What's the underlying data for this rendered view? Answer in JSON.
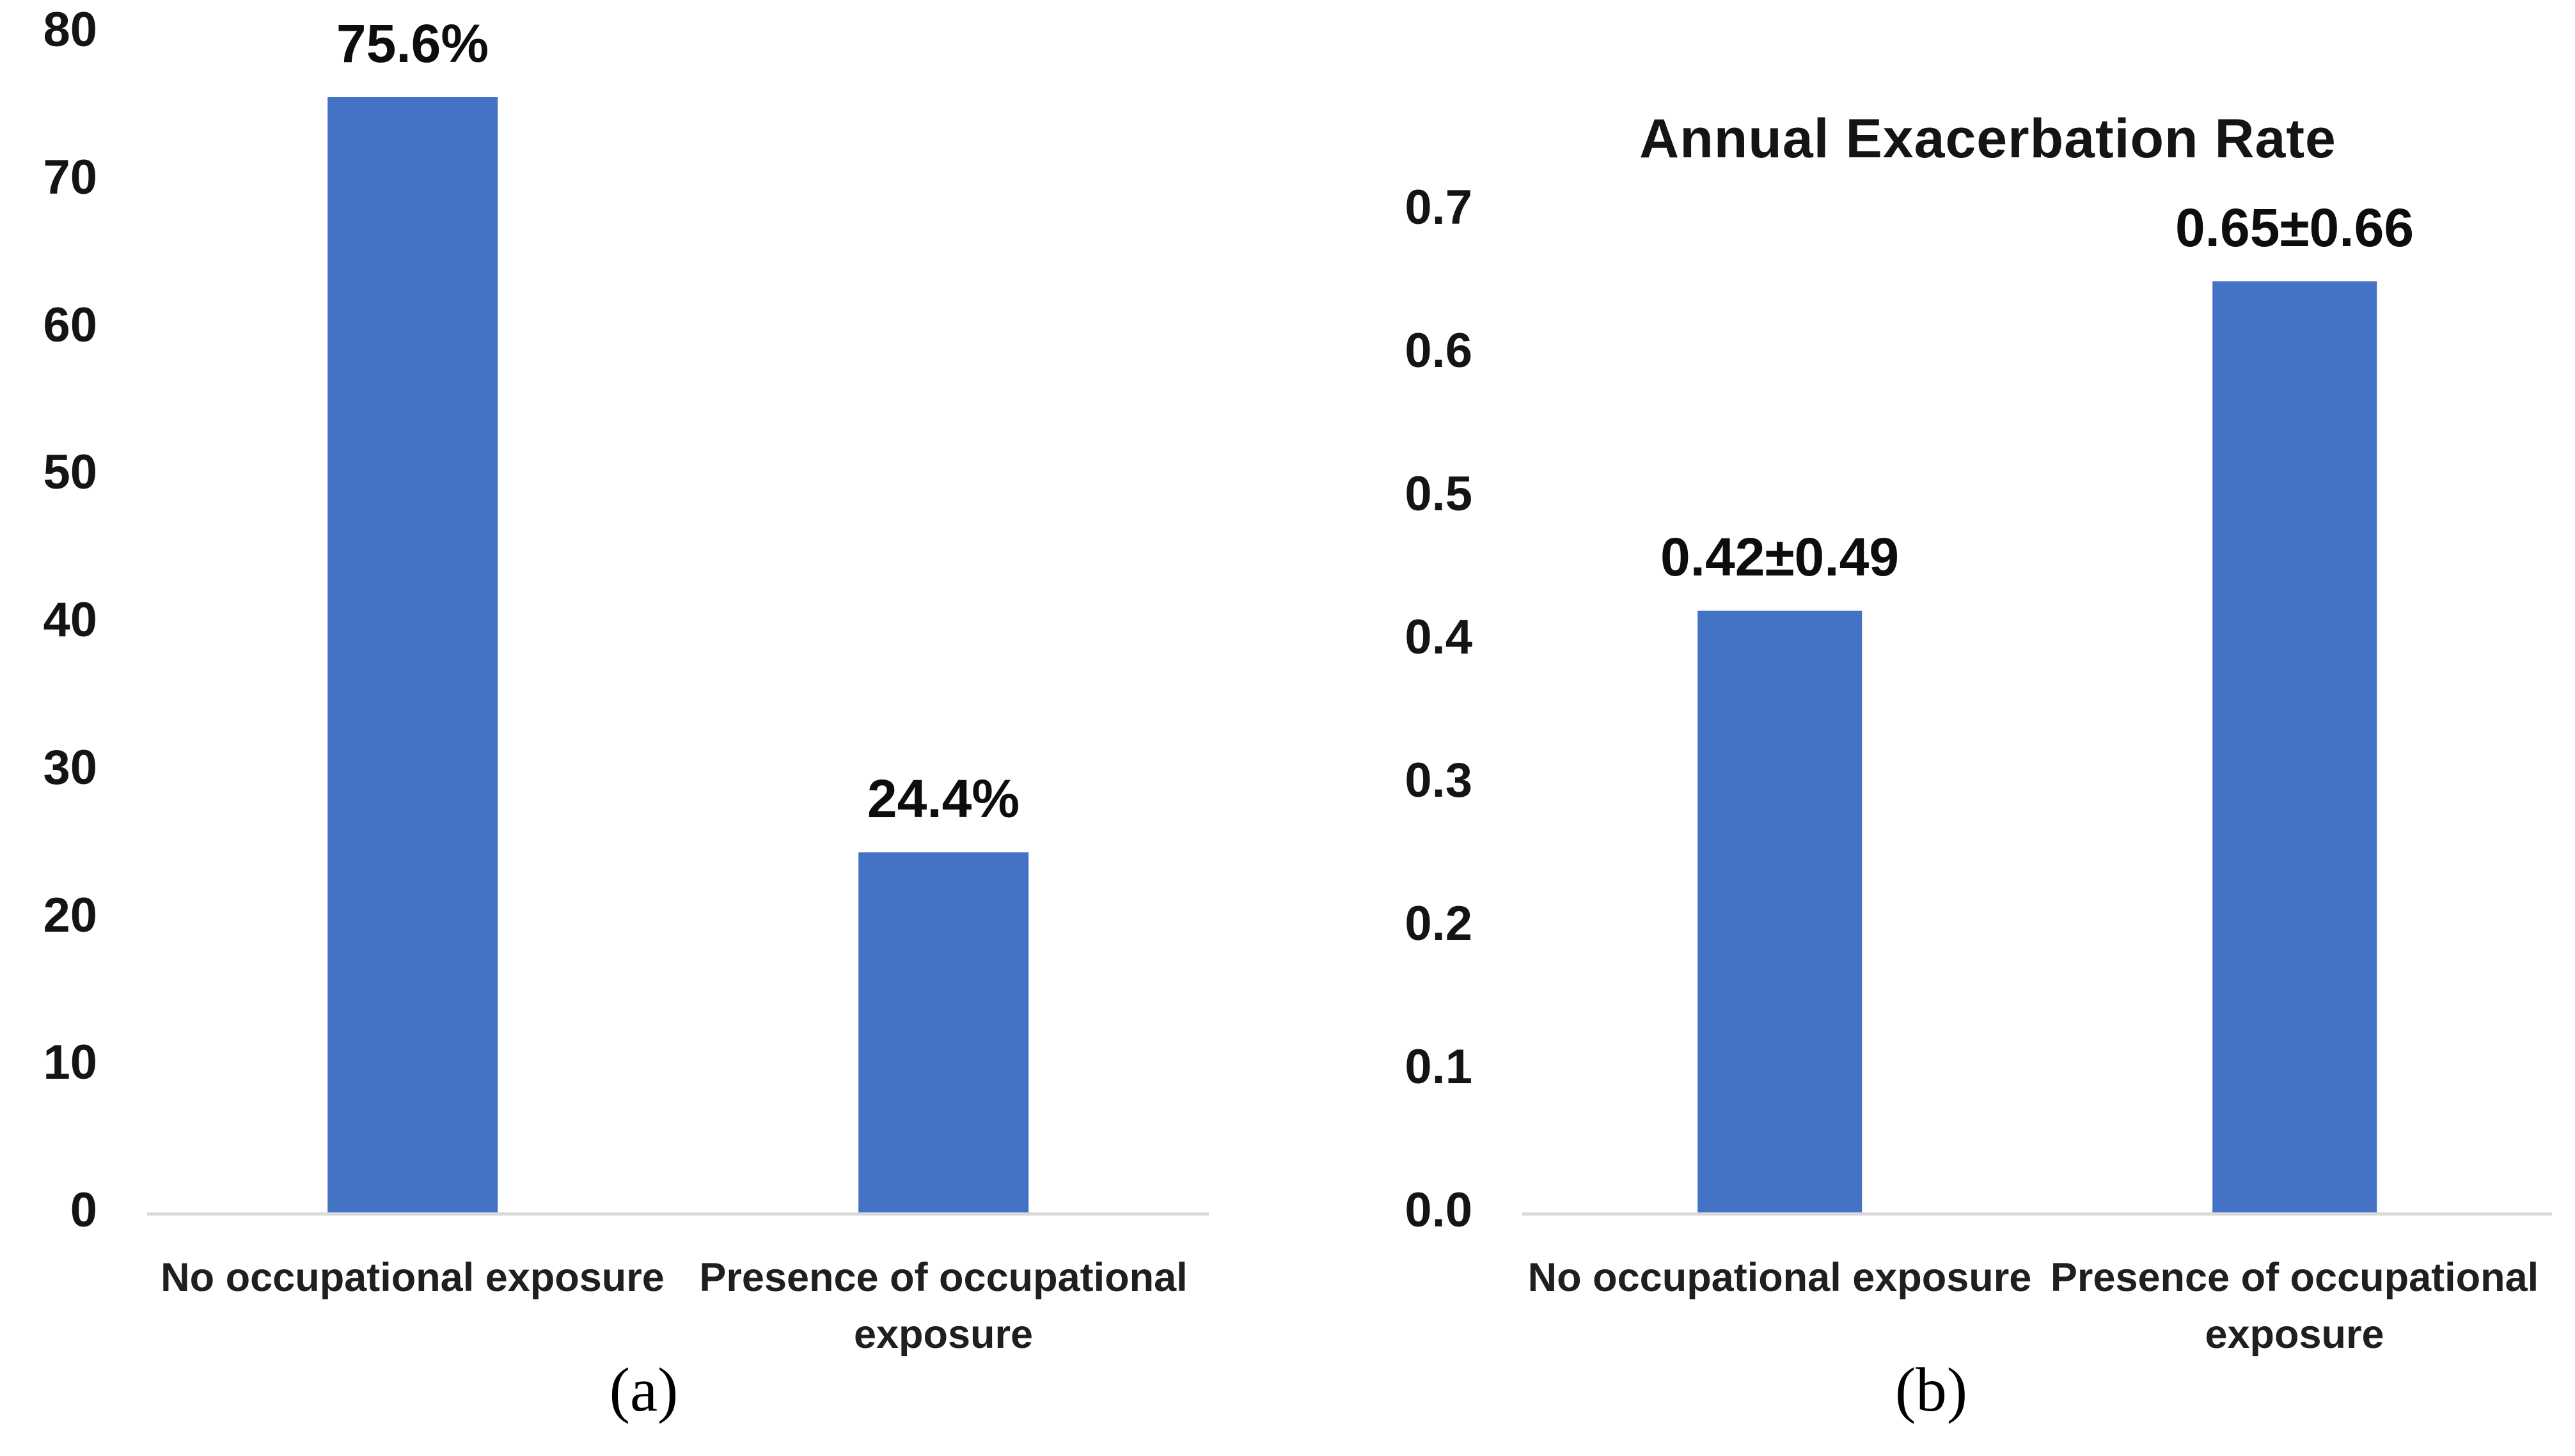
{
  "figure": {
    "background": "#ffffff"
  },
  "colors": {
    "bar": "#4472C4",
    "axis_line": "#d9d9d9",
    "text": "#1a1a1a"
  },
  "chart_data": [
    {
      "id": "a",
      "type": "bar",
      "title": "",
      "caption": "(a)",
      "categories": [
        "No occupational exposure",
        "Presence of occupational exposure"
      ],
      "values": [
        75.6,
        24.4
      ],
      "value_labels": [
        "75.6%",
        "24.4%"
      ],
      "ylim": [
        0,
        80
      ],
      "yticks": [
        0,
        10,
        20,
        30,
        40,
        50,
        60,
        70,
        80
      ],
      "ytick_labels": [
        "0",
        "10",
        "20",
        "30",
        "40",
        "50",
        "60",
        "70",
        "80"
      ],
      "xlabel": "",
      "ylabel": "",
      "grid": false,
      "legend": null,
      "bar_color": "#4472C4"
    },
    {
      "id": "b",
      "type": "bar",
      "title": "Annual Exacerbation Rate",
      "caption": "(b)",
      "categories": [
        "No occupational exposure",
        "Presence of occupational exposure"
      ],
      "values": [
        0.42,
        0.65
      ],
      "value_labels": [
        "0.42±0.49",
        "0.65±0.66"
      ],
      "ylim": [
        0,
        0.7
      ],
      "yticks": [
        0.0,
        0.1,
        0.2,
        0.3,
        0.4,
        0.5,
        0.6,
        0.7
      ],
      "ytick_labels": [
        "0.0",
        "0.1",
        "0.2",
        "0.3",
        "0.4",
        "0.5",
        "0.6",
        "0.7"
      ],
      "xlabel": "",
      "ylabel": "",
      "grid": false,
      "legend": null,
      "bar_color": "#4472C4"
    }
  ]
}
